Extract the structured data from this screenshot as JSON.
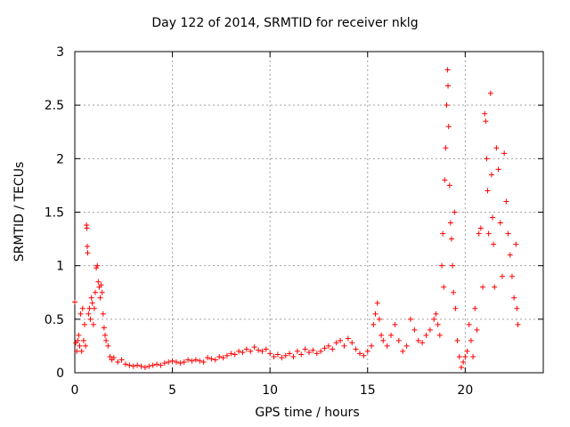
{
  "chart_data": {
    "type": "scatter",
    "title": "Day 122 of 2014, SRMTID for receiver nklg",
    "xlabel": "GPS time / hours",
    "ylabel": "SRMTID / TECUs",
    "xlim": [
      0,
      24
    ],
    "ylim": [
      0,
      3
    ],
    "x_ticks": [
      0,
      5,
      10,
      15,
      20
    ],
    "x_tick_labels": [
      "0",
      "5",
      "10",
      "15",
      "20"
    ],
    "y_ticks": [
      0,
      0.5,
      1,
      1.5,
      2,
      2.5,
      3
    ],
    "y_tick_labels": [
      "0",
      "0.5",
      "1",
      "1.5",
      "2",
      "2.5",
      "3"
    ],
    "grid": true,
    "marker": "+",
    "series": [
      {
        "name": "SRMTID",
        "color": "#ff0000",
        "points": [
          [
            0.0,
            0.66
          ],
          [
            0.05,
            0.28
          ],
          [
            0.1,
            0.2
          ],
          [
            0.15,
            0.3
          ],
          [
            0.2,
            0.35
          ],
          [
            0.25,
            0.25
          ],
          [
            0.3,
            0.55
          ],
          [
            0.35,
            0.2
          ],
          [
            0.4,
            0.6
          ],
          [
            0.45,
            0.3
          ],
          [
            0.5,
            0.45
          ],
          [
            0.55,
            0.25
          ],
          [
            0.6,
            1.38
          ],
          [
            0.62,
            1.35
          ],
          [
            0.64,
            1.18
          ],
          [
            0.66,
            1.12
          ],
          [
            0.7,
            0.55
          ],
          [
            0.75,
            0.6
          ],
          [
            0.8,
            0.5
          ],
          [
            0.85,
            0.7
          ],
          [
            0.9,
            0.65
          ],
          [
            0.95,
            0.45
          ],
          [
            1.0,
            0.6
          ],
          [
            1.05,
            0.75
          ],
          [
            1.1,
            0.98
          ],
          [
            1.15,
            1.0
          ],
          [
            1.2,
            0.85
          ],
          [
            1.25,
            0.8
          ],
          [
            1.3,
            0.7
          ],
          [
            1.35,
            0.82
          ],
          [
            1.4,
            0.75
          ],
          [
            1.45,
            0.55
          ],
          [
            1.5,
            0.42
          ],
          [
            1.55,
            0.35
          ],
          [
            1.6,
            0.3
          ],
          [
            1.7,
            0.25
          ],
          [
            1.8,
            0.15
          ],
          [
            1.9,
            0.12
          ],
          [
            2.0,
            0.14
          ],
          [
            2.2,
            0.1
          ],
          [
            2.4,
            0.12
          ],
          [
            2.6,
            0.08
          ],
          [
            2.8,
            0.07
          ],
          [
            3.0,
            0.06
          ],
          [
            3.2,
            0.07
          ],
          [
            3.4,
            0.06
          ],
          [
            3.6,
            0.05
          ],
          [
            3.8,
            0.06
          ],
          [
            4.0,
            0.07
          ],
          [
            4.2,
            0.08
          ],
          [
            4.4,
            0.07
          ],
          [
            4.6,
            0.09
          ],
          [
            4.8,
            0.1
          ],
          [
            5.0,
            0.11
          ],
          [
            5.2,
            0.1
          ],
          [
            5.4,
            0.09
          ],
          [
            5.6,
            0.1
          ],
          [
            5.8,
            0.12
          ],
          [
            6.0,
            0.11
          ],
          [
            6.2,
            0.12
          ],
          [
            6.4,
            0.11
          ],
          [
            6.6,
            0.1
          ],
          [
            6.8,
            0.14
          ],
          [
            7.0,
            0.13
          ],
          [
            7.2,
            0.12
          ],
          [
            7.4,
            0.15
          ],
          [
            7.6,
            0.14
          ],
          [
            7.8,
            0.16
          ],
          [
            8.0,
            0.18
          ],
          [
            8.2,
            0.17
          ],
          [
            8.4,
            0.2
          ],
          [
            8.6,
            0.19
          ],
          [
            8.8,
            0.22
          ],
          [
            9.0,
            0.2
          ],
          [
            9.2,
            0.24
          ],
          [
            9.4,
            0.21
          ],
          [
            9.6,
            0.2
          ],
          [
            9.8,
            0.22
          ],
          [
            10.0,
            0.18
          ],
          [
            10.2,
            0.15
          ],
          [
            10.4,
            0.17
          ],
          [
            10.6,
            0.14
          ],
          [
            10.8,
            0.16
          ],
          [
            11.0,
            0.18
          ],
          [
            11.2,
            0.15
          ],
          [
            11.4,
            0.2
          ],
          [
            11.6,
            0.17
          ],
          [
            11.8,
            0.22
          ],
          [
            12.0,
            0.19
          ],
          [
            12.2,
            0.21
          ],
          [
            12.4,
            0.18
          ],
          [
            12.6,
            0.2
          ],
          [
            12.8,
            0.23
          ],
          [
            13.0,
            0.25
          ],
          [
            13.2,
            0.22
          ],
          [
            13.4,
            0.28
          ],
          [
            13.6,
            0.3
          ],
          [
            13.8,
            0.25
          ],
          [
            14.0,
            0.32
          ],
          [
            14.2,
            0.28
          ],
          [
            14.4,
            0.22
          ],
          [
            14.6,
            0.18
          ],
          [
            14.8,
            0.16
          ],
          [
            15.0,
            0.2
          ],
          [
            15.2,
            0.25
          ],
          [
            15.3,
            0.45
          ],
          [
            15.4,
            0.55
          ],
          [
            15.5,
            0.65
          ],
          [
            15.6,
            0.5
          ],
          [
            15.7,
            0.35
          ],
          [
            15.8,
            0.3
          ],
          [
            16.0,
            0.25
          ],
          [
            16.2,
            0.35
          ],
          [
            16.4,
            0.45
          ],
          [
            16.6,
            0.3
          ],
          [
            16.8,
            0.2
          ],
          [
            17.0,
            0.25
          ],
          [
            17.2,
            0.5
          ],
          [
            17.4,
            0.4
          ],
          [
            17.6,
            0.3
          ],
          [
            17.8,
            0.28
          ],
          [
            18.0,
            0.35
          ],
          [
            18.2,
            0.4
          ],
          [
            18.4,
            0.5
          ],
          [
            18.5,
            0.55
          ],
          [
            18.6,
            0.45
          ],
          [
            18.7,
            0.35
          ],
          [
            18.8,
            1.0
          ],
          [
            18.85,
            1.3
          ],
          [
            18.9,
            0.8
          ],
          [
            18.95,
            1.8
          ],
          [
            19.0,
            2.1
          ],
          [
            19.05,
            2.5
          ],
          [
            19.1,
            2.83
          ],
          [
            19.12,
            2.68
          ],
          [
            19.15,
            2.3
          ],
          [
            19.2,
            1.75
          ],
          [
            19.25,
            1.4
          ],
          [
            19.3,
            1.25
          ],
          [
            19.35,
            1.0
          ],
          [
            19.4,
            0.75
          ],
          [
            19.45,
            1.5
          ],
          [
            19.5,
            0.6
          ],
          [
            19.6,
            0.3
          ],
          [
            19.7,
            0.15
          ],
          [
            19.8,
            0.05
          ],
          [
            19.9,
            0.1
          ],
          [
            20.0,
            0.15
          ],
          [
            20.1,
            0.2
          ],
          [
            20.2,
            0.45
          ],
          [
            20.3,
            0.3
          ],
          [
            20.4,
            0.15
          ],
          [
            20.5,
            0.6
          ],
          [
            20.6,
            0.4
          ],
          [
            20.7,
            1.3
          ],
          [
            20.8,
            1.35
          ],
          [
            20.9,
            0.8
          ],
          [
            21.0,
            2.42
          ],
          [
            21.05,
            2.35
          ],
          [
            21.1,
            2.0
          ],
          [
            21.15,
            1.7
          ],
          [
            21.2,
            1.3
          ],
          [
            21.3,
            2.61
          ],
          [
            21.35,
            1.85
          ],
          [
            21.4,
            1.45
          ],
          [
            21.45,
            1.2
          ],
          [
            21.5,
            0.8
          ],
          [
            21.6,
            2.1
          ],
          [
            21.7,
            1.9
          ],
          [
            21.8,
            1.4
          ],
          [
            21.9,
            0.9
          ],
          [
            22.0,
            2.05
          ],
          [
            22.1,
            1.6
          ],
          [
            22.2,
            1.3
          ],
          [
            22.3,
            1.1
          ],
          [
            22.4,
            0.9
          ],
          [
            22.5,
            0.7
          ],
          [
            22.6,
            1.2
          ],
          [
            22.65,
            0.6
          ],
          [
            22.7,
            0.45
          ]
        ]
      }
    ]
  }
}
